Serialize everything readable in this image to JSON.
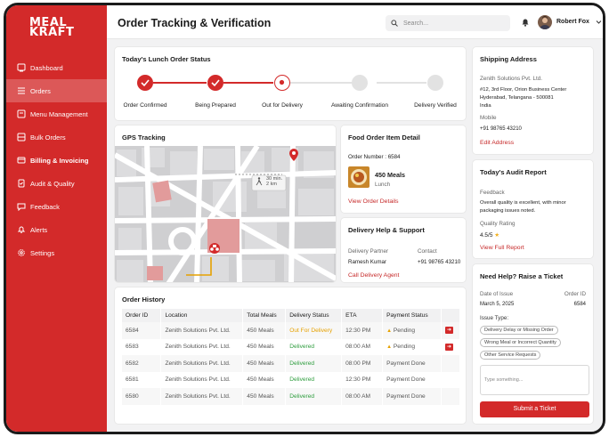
{
  "brand": {
    "line1": "MEAL",
    "line2": "KRAFT"
  },
  "sidebar": {
    "items": [
      {
        "label": "Dashboard",
        "icon": "dashboard-icon",
        "active": false
      },
      {
        "label": "Orders",
        "icon": "orders-icon",
        "active": true
      },
      {
        "label": "Menu Management",
        "icon": "menu-icon",
        "active": false
      },
      {
        "label": "Bulk Orders",
        "icon": "bulk-icon",
        "active": false
      },
      {
        "label": "Billing & Invoicing",
        "icon": "billing-icon",
        "active": false
      },
      {
        "label": "Audit & Quality",
        "icon": "audit-icon",
        "active": false
      },
      {
        "label": "Feedback",
        "icon": "feedback-icon",
        "active": false
      },
      {
        "label": "Alerts",
        "icon": "alerts-icon",
        "active": false
      },
      {
        "label": "Settings",
        "icon": "settings-icon",
        "active": false
      }
    ]
  },
  "header": {
    "title": "Order Tracking & Verification",
    "search_placeholder": "Search...",
    "user_name": "Robert Fox"
  },
  "status": {
    "title": "Today's Lunch Order Status",
    "steps": [
      {
        "label": "Order Confirmed",
        "state": "done"
      },
      {
        "label": "Being Prepared",
        "state": "done"
      },
      {
        "label": "Out for Delivery",
        "state": "current"
      },
      {
        "label": "Awaiting Confirmation",
        "state": "pending"
      },
      {
        "label": "Delivery Verified",
        "state": "pending"
      }
    ]
  },
  "gps": {
    "title": "GPS Tracking",
    "eta_line1": "30 min.",
    "eta_line2": "2 km"
  },
  "food": {
    "title": "Food Order Item Detail",
    "order_number": "Order Number : 6584",
    "meals": "450 Meals",
    "meal_type": "Lunch",
    "link": "View Order Details"
  },
  "delivery_help": {
    "title": "Delivery Help & Support",
    "partner_label": "Delivery Partner",
    "partner": "Ramesh Kumar",
    "contact_label": "Contact",
    "contact": "+91 98765 43210",
    "link": "Call Delivery Agent"
  },
  "history": {
    "title": "Order History",
    "columns": [
      "Order ID",
      "Location",
      "Total Meals",
      "Delivery Status",
      "ETA",
      "Payment Status"
    ],
    "rows": [
      {
        "id": "6584",
        "location": "Zenith Solutions Pvt. Ltd.",
        "meals": "450 Meals",
        "status": "Out For Delivery",
        "eta": "12:30 PM",
        "payment": "Pending"
      },
      {
        "id": "6583",
        "location": "Zenith Solutions Pvt. Ltd.",
        "meals": "450 Meals",
        "status": "Delivered",
        "eta": "08:00 AM",
        "payment": "Pending"
      },
      {
        "id": "6582",
        "location": "Zenith Solutions Pvt. Ltd.",
        "meals": "450 Meals",
        "status": "Delivered",
        "eta": "08:00 PM",
        "payment": "Payment Done"
      },
      {
        "id": "6581",
        "location": "Zenith Solutions Pvt. Ltd.",
        "meals": "450 Meals",
        "status": "Delivered",
        "eta": "12:30 PM",
        "payment": "Payment Done"
      },
      {
        "id": "6580",
        "location": "Zenith Solutions Pvt. Ltd.",
        "meals": "450 Meals",
        "status": "Delivered",
        "eta": "08:00 AM",
        "payment": "Payment Done"
      }
    ]
  },
  "shipping": {
    "title": "Shipping Address",
    "company": "Zenith Solutions Pvt. Ltd.",
    "address1": "#12, 3rd Floor, Orion Business Center",
    "address2": "Hyderabad, Telangana - 500081",
    "country": "India",
    "mobile_label": "Mobile",
    "mobile": "+91 98765 43210",
    "link": "Edit Address"
  },
  "audit": {
    "title": "Today's Audit Report",
    "feedback_label": "Feedback",
    "feedback1": "Overall quality is excellent, with minor",
    "feedback2": "packaging issues noted.",
    "rating_label": "Quality Rating",
    "rating": "4.5/5",
    "link": "View Full Report"
  },
  "ticket": {
    "title": "Need Help? Raise a Ticket",
    "date_label": "Date of Issue",
    "date": "March 5, 2025",
    "order_label": "Order ID",
    "order": "6584",
    "issue_label": "Issue Type:",
    "options": [
      "Delivery Delay or Missing Order",
      "Wrong Meal or Incorrect Quantity",
      "Other Service Requests"
    ],
    "textarea_placeholder": "Type something...",
    "submit": "Submit a Ticket"
  },
  "colors": {
    "brand_red": "#d32a2a",
    "delivered_green": "#2e9d3e",
    "out_for_delivery_orange": "#e6a100"
  }
}
